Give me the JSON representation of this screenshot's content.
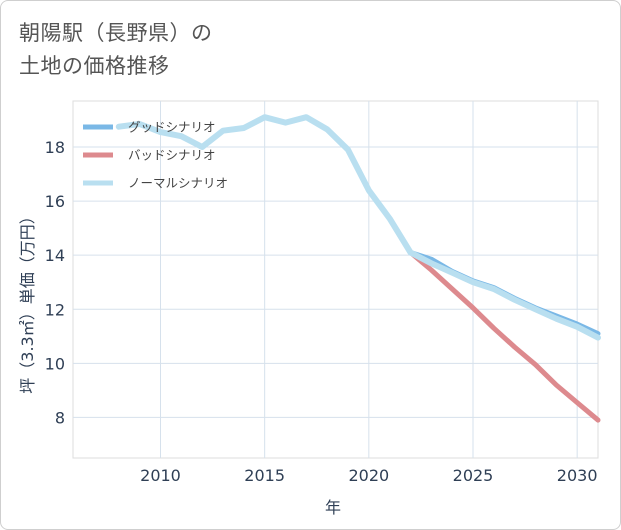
{
  "title": {
    "line1": "朝陽駅（長野県）の",
    "line2": "土地の価格推移"
  },
  "chart_data": {
    "type": "line",
    "xlabel": "年",
    "ylabel": "坪（3.3㎡）単価（万円）",
    "xlim": [
      2005.8,
      2031
    ],
    "ylim": [
      6.5,
      19.7
    ],
    "xticks": [
      2010,
      2015,
      2020,
      2025,
      2030
    ],
    "yticks": [
      8,
      10,
      12,
      14,
      16,
      18
    ],
    "grid": true,
    "legend_position": "top-left",
    "series": [
      {
        "name": "グッドシナリオ",
        "color": "#7ab8e6",
        "x": [
          2022,
          2023,
          2024,
          2025,
          2026,
          2027,
          2028,
          2029,
          2030,
          2031
        ],
        "values": [
          14.1,
          13.85,
          13.4,
          13.05,
          12.8,
          12.4,
          12.05,
          11.75,
          11.45,
          11.1
        ]
      },
      {
        "name": "バッドシナリオ",
        "color": "#dd8a8e",
        "x": [
          2022,
          2023,
          2024,
          2025,
          2026,
          2027,
          2028,
          2029,
          2030,
          2031
        ],
        "values": [
          14.1,
          13.45,
          12.75,
          12.05,
          11.3,
          10.6,
          9.95,
          9.2,
          8.55,
          7.9
        ]
      },
      {
        "name": "ノーマルシナリオ",
        "color": "#b9dff0",
        "x": [
          2008,
          2009,
          2010,
          2011,
          2012,
          2013,
          2014,
          2015,
          2016,
          2017,
          2018,
          2019,
          2020,
          2021,
          2022,
          2023,
          2024,
          2025,
          2026,
          2027,
          2028,
          2029,
          2030,
          2031
        ],
        "values": [
          18.75,
          18.85,
          18.55,
          18.4,
          18.0,
          18.6,
          18.7,
          19.1,
          18.9,
          19.1,
          18.65,
          17.9,
          16.4,
          15.35,
          14.1,
          13.7,
          13.35,
          13.0,
          12.75,
          12.35,
          12.0,
          11.65,
          11.35,
          10.95
        ]
      }
    ]
  }
}
